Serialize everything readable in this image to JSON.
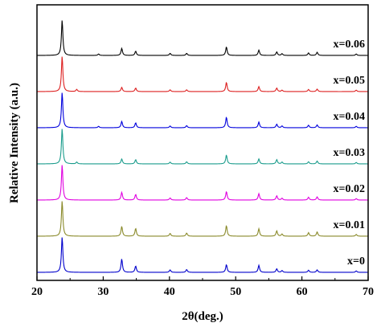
{
  "chart_data": {
    "type": "line",
    "xlabel": "2θ(deg.)",
    "ylabel": "Relative Intensity (a.u.)",
    "xlim": [
      20,
      70
    ],
    "xticks": [
      20,
      30,
      40,
      50,
      60,
      70
    ],
    "grid": false,
    "series": [
      {
        "name": "x=0",
        "color": "#0000cc",
        "peaks": [
          [
            23.8,
            1.0
          ],
          [
            32.8,
            0.38
          ],
          [
            34.9,
            0.18
          ],
          [
            40.1,
            0.07
          ],
          [
            42.6,
            0.08
          ],
          [
            48.6,
            0.22
          ],
          [
            53.5,
            0.2
          ],
          [
            56.2,
            0.1
          ],
          [
            57.0,
            0.05
          ],
          [
            61.0,
            0.06
          ],
          [
            62.3,
            0.07
          ],
          [
            68.2,
            0.04
          ]
        ]
      },
      {
        "name": "x=0.01",
        "color": "#8a8a2a",
        "peaks": [
          [
            23.8,
            1.0
          ],
          [
            32.8,
            0.28
          ],
          [
            34.9,
            0.22
          ],
          [
            40.1,
            0.08
          ],
          [
            42.6,
            0.09
          ],
          [
            48.6,
            0.3
          ],
          [
            53.5,
            0.21
          ],
          [
            56.2,
            0.15
          ],
          [
            57.0,
            0.06
          ],
          [
            61.0,
            0.1
          ],
          [
            62.3,
            0.12
          ],
          [
            68.2,
            0.05
          ]
        ]
      },
      {
        "name": "x=0.02",
        "color": "#e000e0",
        "peaks": [
          [
            23.8,
            1.0
          ],
          [
            32.8,
            0.22
          ],
          [
            34.9,
            0.16
          ],
          [
            40.1,
            0.06
          ],
          [
            42.6,
            0.07
          ],
          [
            48.6,
            0.24
          ],
          [
            53.5,
            0.18
          ],
          [
            56.2,
            0.12
          ],
          [
            57.0,
            0.05
          ],
          [
            61.0,
            0.08
          ],
          [
            62.3,
            0.09
          ],
          [
            68.2,
            0.04
          ]
        ]
      },
      {
        "name": "x=0.03",
        "color": "#1a9c8c",
        "peaks": [
          [
            23.8,
            1.0
          ],
          [
            26.0,
            0.05
          ],
          [
            32.8,
            0.14
          ],
          [
            34.9,
            0.12
          ],
          [
            40.1,
            0.05
          ],
          [
            42.6,
            0.06
          ],
          [
            48.6,
            0.25
          ],
          [
            53.5,
            0.14
          ],
          [
            56.2,
            0.12
          ],
          [
            57.0,
            0.05
          ],
          [
            61.0,
            0.06
          ],
          [
            62.3,
            0.08
          ],
          [
            68.2,
            0.04
          ]
        ]
      },
      {
        "name": "x=0.04",
        "color": "#0000dd",
        "peaks": [
          [
            23.8,
            1.0
          ],
          [
            29.3,
            0.04
          ],
          [
            32.8,
            0.18
          ],
          [
            34.9,
            0.14
          ],
          [
            40.1,
            0.05
          ],
          [
            42.6,
            0.06
          ],
          [
            48.6,
            0.3
          ],
          [
            53.5,
            0.16
          ],
          [
            56.2,
            0.1
          ],
          [
            57.0,
            0.05
          ],
          [
            61.0,
            0.07
          ],
          [
            62.3,
            0.08
          ],
          [
            68.2,
            0.04
          ]
        ]
      },
      {
        "name": "x=0.05",
        "color": "#dd2020",
        "peaks": [
          [
            23.8,
            1.0
          ],
          [
            26.0,
            0.06
          ],
          [
            32.8,
            0.12
          ],
          [
            34.9,
            0.1
          ],
          [
            40.1,
            0.05
          ],
          [
            42.6,
            0.05
          ],
          [
            48.6,
            0.26
          ],
          [
            53.5,
            0.14
          ],
          [
            56.2,
            0.1
          ],
          [
            57.0,
            0.04
          ],
          [
            61.0,
            0.06
          ],
          [
            62.3,
            0.07
          ],
          [
            68.2,
            0.04
          ]
        ]
      },
      {
        "name": "x=0.06",
        "color": "#000000",
        "peaks": [
          [
            23.8,
            1.0
          ],
          [
            29.3,
            0.04
          ],
          [
            32.8,
            0.2
          ],
          [
            34.9,
            0.12
          ],
          [
            40.1,
            0.06
          ],
          [
            42.6,
            0.06
          ],
          [
            48.6,
            0.24
          ],
          [
            53.5,
            0.15
          ],
          [
            56.2,
            0.1
          ],
          [
            57.0,
            0.05
          ],
          [
            61.0,
            0.07
          ],
          [
            62.3,
            0.09
          ],
          [
            68.2,
            0.04
          ]
        ]
      }
    ]
  }
}
